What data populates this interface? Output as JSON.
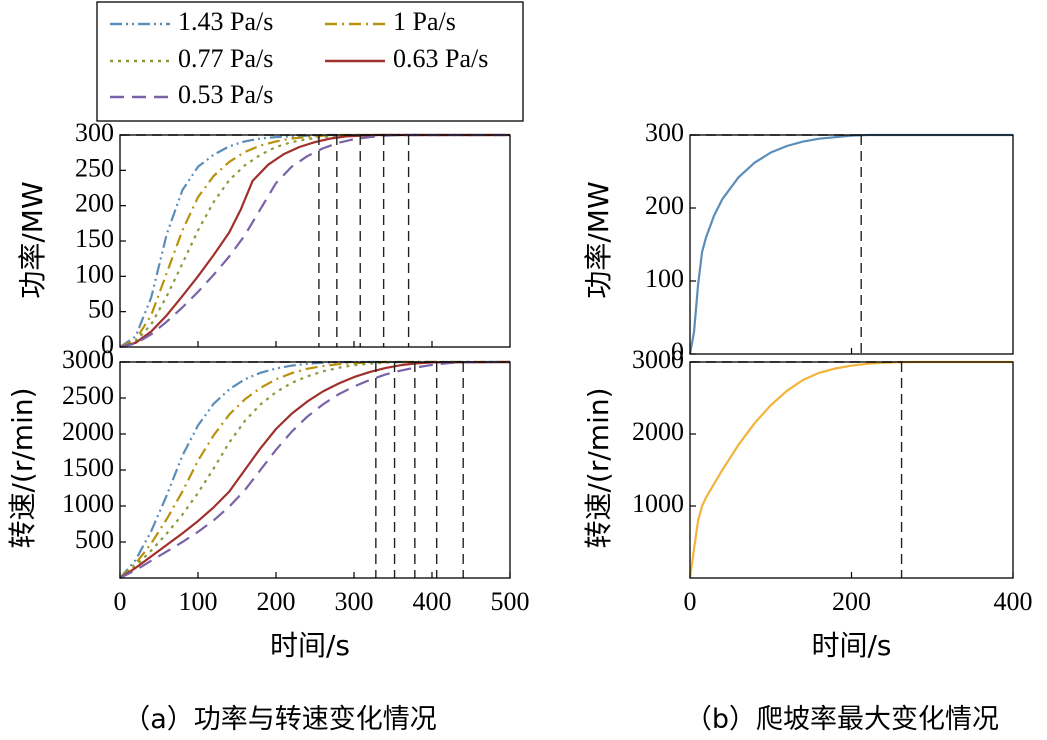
{
  "figure": {
    "caption_a": "（a）功率与转速变化情况",
    "caption_b": "（b）爬坡率最大变化情况"
  },
  "chart_data": [
    {
      "id": "a-power",
      "type": "line",
      "panel": "a-top",
      "xlabel": "",
      "ylabel": "功率/MW",
      "xlim": [
        0,
        500
      ],
      "ylim": [
        0,
        300
      ],
      "yticks": [
        "0",
        "50",
        "100",
        "150",
        "200",
        "250",
        "300"
      ],
      "target_line": 300,
      "series": [
        {
          "name": "1.43 Pa/s",
          "color": "#5b8db8",
          "dash": "dashdotdot",
          "x": [
            0,
            20,
            40,
            60,
            80,
            100,
            120,
            140,
            160,
            180,
            200,
            220,
            240,
            260,
            280,
            300,
            500
          ],
          "y": [
            0,
            15,
            70,
            160,
            222,
            255,
            272,
            284,
            291,
            295,
            297,
            298,
            299,
            300,
            300,
            300,
            300
          ],
          "settle_x": 255
        },
        {
          "name": "1 Pa/s",
          "color": "#b8920c",
          "dash": "dashdot",
          "x": [
            0,
            20,
            40,
            60,
            80,
            100,
            120,
            140,
            160,
            180,
            200,
            220,
            240,
            260,
            280,
            300,
            500
          ],
          "y": [
            0,
            10,
            45,
            105,
            165,
            212,
            242,
            262,
            276,
            285,
            291,
            295,
            297,
            299,
            300,
            300,
            300
          ],
          "settle_x": 278
        },
        {
          "name": "0.77 Pa/s",
          "color": "#8a9a3a",
          "dash": "dotted",
          "x": [
            0,
            20,
            40,
            60,
            80,
            100,
            120,
            140,
            160,
            180,
            200,
            220,
            240,
            260,
            280,
            300,
            320,
            500
          ],
          "y": [
            0,
            8,
            32,
            72,
            118,
            165,
            205,
            236,
            257,
            272,
            283,
            290,
            294,
            297,
            299,
            300,
            300,
            300
          ],
          "settle_x": 308
        },
        {
          "name": "0.63 Pa/s",
          "color": "#a0302c",
          "dash": "solid",
          "x": [
            0,
            20,
            40,
            60,
            80,
            100,
            120,
            140,
            155,
            170,
            190,
            210,
            230,
            250,
            270,
            290,
            310,
            330,
            500
          ],
          "y": [
            0,
            6,
            22,
            45,
            72,
            100,
            130,
            162,
            195,
            235,
            258,
            273,
            283,
            290,
            295,
            298,
            299,
            300,
            300
          ],
          "settle_x": 338
        },
        {
          "name": "0.53 Pa/s",
          "color": "#7a62a8",
          "dash": "dashed",
          "x": [
            0,
            20,
            40,
            60,
            80,
            100,
            120,
            140,
            160,
            180,
            200,
            220,
            240,
            260,
            280,
            300,
            320,
            340,
            360,
            380,
            500
          ],
          "y": [
            0,
            5,
            18,
            36,
            56,
            78,
            102,
            128,
            158,
            195,
            232,
            255,
            270,
            281,
            289,
            294,
            297,
            299,
            300,
            300,
            300
          ],
          "settle_x": 370
        }
      ]
    },
    {
      "id": "a-speed",
      "type": "line",
      "panel": "a-bottom",
      "xlabel": "时间/s",
      "ylabel": "转速/(r/min)",
      "xlim": [
        0,
        500
      ],
      "ylim": [
        0,
        3000
      ],
      "xticks": [
        "0",
        "100",
        "200",
        "300",
        "400",
        "500"
      ],
      "yticks": [
        "500",
        "1000",
        "1500",
        "2000",
        "2500",
        "3000"
      ],
      "target_line": 3000,
      "series": [
        {
          "name": "1.43 Pa/s",
          "color": "#5b8db8",
          "dash": "dashdotdot",
          "x": [
            0,
            20,
            40,
            60,
            80,
            100,
            120,
            140,
            160,
            180,
            200,
            220,
            240,
            260,
            280,
            300,
            320,
            340,
            500
          ],
          "y": [
            0,
            250,
            650,
            1150,
            1700,
            2120,
            2420,
            2620,
            2760,
            2850,
            2910,
            2950,
            2975,
            2990,
            2997,
            3000,
            3000,
            3000,
            3000
          ],
          "settle_x": 328
        },
        {
          "name": "1 Pa/s",
          "color": "#b8920c",
          "dash": "dashdot",
          "x": [
            0,
            20,
            40,
            60,
            80,
            100,
            120,
            140,
            160,
            180,
            200,
            220,
            240,
            260,
            280,
            300,
            320,
            340,
            360,
            500
          ],
          "y": [
            0,
            200,
            480,
            820,
            1200,
            1630,
            1980,
            2270,
            2480,
            2640,
            2760,
            2845,
            2905,
            2945,
            2970,
            2985,
            2995,
            3000,
            3000,
            3000
          ],
          "settle_x": 352
        },
        {
          "name": "0.77 Pa/s",
          "color": "#8a9a3a",
          "dash": "dotted",
          "x": [
            0,
            20,
            40,
            60,
            80,
            100,
            120,
            140,
            160,
            180,
            200,
            220,
            240,
            260,
            280,
            300,
            320,
            340,
            360,
            380,
            500
          ],
          "y": [
            0,
            170,
            380,
            620,
            880,
            1180,
            1520,
            1880,
            2180,
            2410,
            2580,
            2710,
            2800,
            2870,
            2920,
            2955,
            2978,
            2992,
            2998,
            3000,
            3000
          ],
          "settle_x": 378
        },
        {
          "name": "0.63 Pa/s",
          "color": "#a0302c",
          "dash": "solid",
          "x": [
            0,
            20,
            40,
            60,
            80,
            100,
            120,
            140,
            160,
            180,
            200,
            220,
            240,
            260,
            280,
            300,
            320,
            340,
            360,
            380,
            400,
            500
          ],
          "y": [
            0,
            140,
            300,
            460,
            620,
            790,
            980,
            1200,
            1500,
            1800,
            2070,
            2280,
            2450,
            2590,
            2700,
            2790,
            2860,
            2915,
            2955,
            2980,
            2995,
            3000
          ],
          "settle_x": 406
        },
        {
          "name": "0.53 Pa/s",
          "color": "#7a62a8",
          "dash": "dashed",
          "x": [
            0,
            20,
            40,
            60,
            80,
            100,
            120,
            140,
            160,
            180,
            200,
            220,
            240,
            260,
            280,
            300,
            320,
            340,
            360,
            380,
            400,
            420,
            440,
            500
          ],
          "y": [
            0,
            110,
            240,
            370,
            500,
            640,
            800,
            990,
            1220,
            1500,
            1780,
            2030,
            2240,
            2410,
            2550,
            2660,
            2750,
            2825,
            2880,
            2925,
            2960,
            2985,
            2998,
            3000
          ],
          "settle_x": 440
        }
      ]
    },
    {
      "id": "b-power",
      "type": "line",
      "panel": "b-top",
      "xlabel": "",
      "ylabel": "功率/MW",
      "xlim": [
        0,
        400
      ],
      "ylim": [
        0,
        300
      ],
      "yticks": [
        "0",
        "100",
        "200",
        "300"
      ],
      "target_line": 300,
      "series": [
        {
          "name": "功率",
          "color": "#5b8db8",
          "dash": "solid",
          "x": [
            0,
            5,
            10,
            15,
            20,
            30,
            40,
            60,
            80,
            100,
            120,
            140,
            160,
            180,
            200,
            220,
            260,
            400
          ],
          "y": [
            0,
            30,
            95,
            140,
            160,
            190,
            212,
            242,
            262,
            276,
            285,
            291,
            295,
            297,
            299,
            300,
            300,
            300
          ],
          "settle_x": 212
        }
      ]
    },
    {
      "id": "b-speed",
      "type": "line",
      "panel": "b-bottom",
      "xlabel": "时间/s",
      "ylabel": "转速/(r/min)",
      "xlim": [
        0,
        400
      ],
      "ylim": [
        0,
        3000
      ],
      "xticks": [
        "0",
        "200",
        "400"
      ],
      "yticks": [
        "1000",
        "2000",
        "3000"
      ],
      "target_line": 3000,
      "series": [
        {
          "name": "转速",
          "color": "#f2b43a",
          "dash": "solid",
          "x": [
            0,
            5,
            10,
            15,
            20,
            40,
            60,
            80,
            100,
            120,
            140,
            160,
            180,
            200,
            220,
            240,
            260,
            280,
            400
          ],
          "y": [
            0,
            400,
            800,
            1000,
            1120,
            1500,
            1850,
            2150,
            2400,
            2600,
            2750,
            2850,
            2910,
            2950,
            2975,
            2990,
            2998,
            3000,
            3000
          ],
          "settle_x": 262
        }
      ]
    }
  ]
}
